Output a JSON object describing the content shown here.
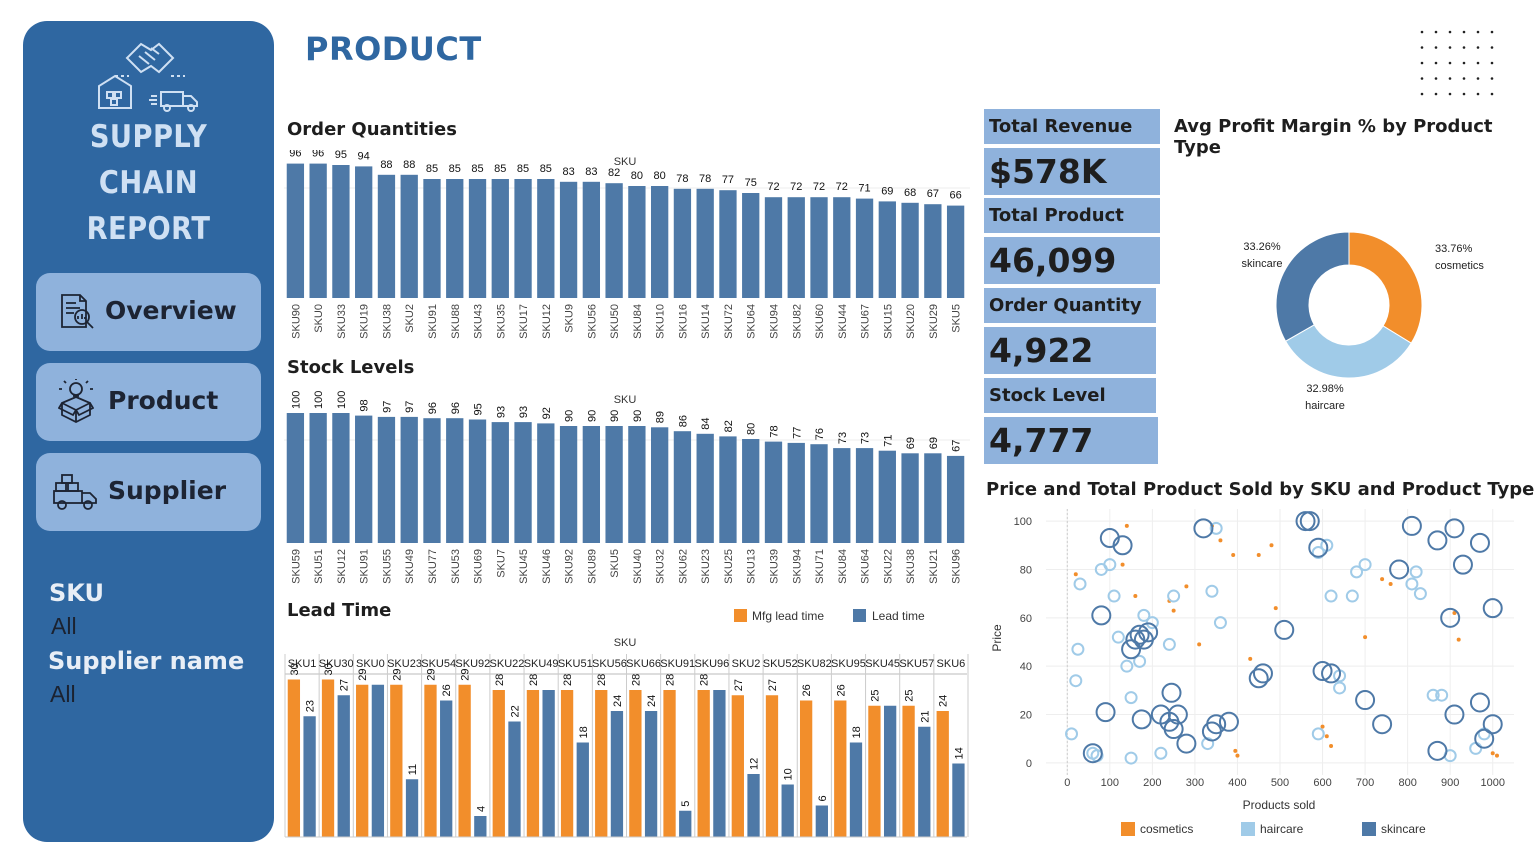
{
  "sidebar": {
    "title_line1": "SUPPLY CHAIN",
    "title_line2": "REPORT",
    "nav": [
      {
        "label": "Overview",
        "icon": "report-magnifier-icon"
      },
      {
        "label": "Product",
        "icon": "box-lightbulb-icon"
      },
      {
        "label": "Supplier",
        "icon": "delivery-truck-icon"
      }
    ],
    "filters": [
      {
        "label": "SKU",
        "value": "All"
      },
      {
        "label": "Supplier name",
        "value": "All"
      }
    ]
  },
  "page": {
    "title": "PRODUCT"
  },
  "kpis": [
    {
      "label": "Total Revenue",
      "value": "$578K"
    },
    {
      "label": "Total Product Sold",
      "value": "46,099"
    },
    {
      "label": "Order Quantity",
      "value": "4,922"
    },
    {
      "label": "Stock Level",
      "value": "4,777"
    }
  ],
  "colors": {
    "cosmetics": "#f28e2b",
    "haircare": "#a0cbe8",
    "skincare": "#4e79a7",
    "bar": "#4e79a7",
    "brand": "#2f67a1"
  },
  "chart_data": [
    {
      "id": "order",
      "type": "bar",
      "title": "Order Quantities",
      "xlabel": "SKU",
      "categories": [
        "SKU90",
        "SKU0",
        "SKU33",
        "SKU19",
        "SKU38",
        "SKU2",
        "SKU91",
        "SKU88",
        "SKU43",
        "SKU35",
        "SKU17",
        "SKU12",
        "SKU9",
        "SKU56",
        "SKU50",
        "SKU84",
        "SKU10",
        "SKU16",
        "SKU14",
        "SKU72",
        "SKU64",
        "SKU94",
        "SKU82",
        "SKU60",
        "SKU44",
        "SKU67",
        "SKU15",
        "SKU20",
        "SKU29",
        "SKU5"
      ],
      "values": [
        96,
        96,
        95,
        94,
        88,
        88,
        85,
        85,
        85,
        85,
        85,
        85,
        83,
        83,
        82,
        80,
        80,
        78,
        78,
        77,
        75,
        72,
        72,
        72,
        72,
        71,
        69,
        68,
        67,
        66
      ],
      "ylim": [
        0,
        100
      ]
    },
    {
      "id": "stock",
      "type": "bar",
      "title": "Stock Levels",
      "xlabel": "SKU",
      "categories": [
        "SKU59",
        "SKU51",
        "SKU12",
        "SKU91",
        "SKU55",
        "SKU49",
        "SKU77",
        "SKU53",
        "SKU69",
        "SKU7",
        "SKU45",
        "SKU46",
        "SKU92",
        "SKU89",
        "SKU5",
        "SKU40",
        "SKU32",
        "SKU62",
        "SKU23",
        "SKU25",
        "SKU13",
        "SKU39",
        "SKU94",
        "SKU71",
        "SKU84",
        "SKU64",
        "SKU22",
        "SKU38",
        "SKU21",
        "SKU96"
      ],
      "values": [
        100,
        100,
        100,
        98,
        97,
        97,
        96,
        96,
        95,
        93,
        93,
        92,
        90,
        90,
        90,
        90,
        89,
        86,
        84,
        82,
        80,
        78,
        77,
        76,
        73,
        73,
        71,
        69,
        69,
        67
      ],
      "ylim": [
        0,
        100
      ]
    },
    {
      "id": "lead",
      "type": "bar",
      "title": "Lead Time",
      "xlabel": "SKU",
      "categories": [
        "SKU1",
        "SKU30",
        "SKU0",
        "SKU23",
        "SKU54",
        "SKU92",
        "SKU22",
        "SKU49",
        "SKU51",
        "SKU56",
        "SKU66",
        "SKU91",
        "SKU96",
        "SKU2",
        "SKU52",
        "SKU82",
        "SKU95",
        "SKU45",
        "SKU57",
        "SKU6"
      ],
      "series": [
        {
          "name": "Mfg lead time",
          "values": [
            30,
            30,
            29,
            29,
            29,
            29,
            28,
            28,
            28,
            28,
            28,
            28,
            28,
            27,
            27,
            26,
            26,
            25,
            25,
            24
          ]
        },
        {
          "name": "Lead time",
          "values": [
            23,
            27,
            29,
            11,
            26,
            4,
            22,
            28,
            18,
            24,
            24,
            5,
            28,
            12,
            10,
            6,
            18,
            25,
            21,
            14
          ]
        }
      ],
      "show_labels": [
        [
          true,
          true
        ],
        [
          true,
          true
        ],
        [
          true,
          false
        ],
        [
          true,
          true
        ],
        [
          true,
          true
        ],
        [
          true,
          true
        ],
        [
          true,
          true
        ],
        [
          true,
          false
        ],
        [
          true,
          true
        ],
        [
          true,
          true
        ],
        [
          true,
          true
        ],
        [
          true,
          true
        ],
        [
          true,
          false
        ],
        [
          true,
          true
        ],
        [
          true,
          true
        ],
        [
          true,
          true
        ],
        [
          true,
          true
        ],
        [
          true,
          false
        ],
        [
          true,
          true
        ],
        [
          true,
          true
        ]
      ],
      "ylim": [
        0,
        32
      ]
    },
    {
      "id": "donut",
      "type": "pie",
      "title": "Avg Profit Margin % by Product Type",
      "slices": [
        {
          "label": "cosmetics",
          "pct": "33.76%",
          "value": 33.76
        },
        {
          "label": "haircare",
          "pct": "32.98%",
          "value": 32.98
        },
        {
          "label": "skincare",
          "pct": "33.26%",
          "value": 33.26
        }
      ]
    },
    {
      "id": "scatter",
      "type": "scatter",
      "title": "Price and Total Product Sold by SKU and Product Type",
      "xlabel": "Products sold",
      "ylabel": "Price",
      "xlim": [
        -50,
        1050
      ],
      "ylim": [
        -5,
        105
      ],
      "xticks": [
        0,
        100,
        200,
        300,
        400,
        500,
        600,
        700,
        800,
        900,
        1000
      ],
      "yticks": [
        0,
        20,
        40,
        60,
        80,
        100
      ],
      "legend": [
        "cosmetics",
        "haircare",
        "skincare"
      ],
      "series": [
        {
          "name": "cosmetics",
          "points": [
            [
              20,
              78
            ],
            [
              140,
              98
            ],
            [
              130,
              82
            ],
            [
              160,
              69
            ],
            [
              240,
              67
            ],
            [
              250,
              63
            ],
            [
              280,
              73
            ],
            [
              310,
              49
            ],
            [
              340,
              98
            ],
            [
              360,
              92
            ],
            [
              390,
              86
            ],
            [
              395,
              5
            ],
            [
              400,
              3
            ],
            [
              430,
              43
            ],
            [
              450,
              86
            ],
            [
              480,
              90
            ],
            [
              490,
              64
            ],
            [
              600,
              15
            ],
            [
              610,
              11
            ],
            [
              620,
              7
            ],
            [
              700,
              52
            ],
            [
              740,
              76
            ],
            [
              760,
              74
            ],
            [
              910,
              62
            ],
            [
              920,
              51
            ],
            [
              1000,
              4
            ],
            [
              1010,
              3
            ]
          ]
        },
        {
          "name": "haircare",
          "points": [
            [
              10,
              12
            ],
            [
              20,
              34
            ],
            [
              25,
              47
            ],
            [
              30,
              74
            ],
            [
              60,
              4
            ],
            [
              70,
              3
            ],
            [
              80,
              80
            ],
            [
              100,
              82
            ],
            [
              110,
              69
            ],
            [
              120,
              52
            ],
            [
              140,
              40
            ],
            [
              150,
              27
            ],
            [
              150,
              2
            ],
            [
              170,
              42
            ],
            [
              180,
              61
            ],
            [
              200,
              58
            ],
            [
              220,
              4
            ],
            [
              240,
              49
            ],
            [
              250,
              69
            ],
            [
              330,
              8
            ],
            [
              340,
              71
            ],
            [
              350,
              97
            ],
            [
              360,
              58
            ],
            [
              590,
              12
            ],
            [
              590,
              87
            ],
            [
              610,
              90
            ],
            [
              620,
              69
            ],
            [
              640,
              31
            ],
            [
              640,
              36
            ],
            [
              670,
              69
            ],
            [
              680,
              79
            ],
            [
              700,
              82
            ],
            [
              810,
              74
            ],
            [
              820,
              79
            ],
            [
              830,
              70
            ],
            [
              860,
              28
            ],
            [
              880,
              28
            ],
            [
              900,
              3
            ],
            [
              960,
              6
            ],
            [
              980,
              12
            ]
          ]
        },
        {
          "name": "skincare",
          "points": [
            [
              60,
              4
            ],
            [
              80,
              61
            ],
            [
              90,
              21
            ],
            [
              100,
              93
            ],
            [
              130,
              90
            ],
            [
              150,
              47
            ],
            [
              160,
              51
            ],
            [
              170,
              53
            ],
            [
              175,
              18
            ],
            [
              180,
              51
            ],
            [
              190,
              54
            ],
            [
              220,
              20
            ],
            [
              240,
              17
            ],
            [
              245,
              29
            ],
            [
              250,
              14
            ],
            [
              260,
              20
            ],
            [
              280,
              8
            ],
            [
              320,
              97
            ],
            [
              340,
              13
            ],
            [
              350,
              16
            ],
            [
              380,
              17
            ],
            [
              450,
              35
            ],
            [
              460,
              37
            ],
            [
              510,
              55
            ],
            [
              560,
              100
            ],
            [
              570,
              100
            ],
            [
              590,
              89
            ],
            [
              600,
              38
            ],
            [
              620,
              37
            ],
            [
              700,
              26
            ],
            [
              740,
              16
            ],
            [
              780,
              80
            ],
            [
              810,
              98
            ],
            [
              870,
              92
            ],
            [
              870,
              5
            ],
            [
              900,
              60
            ],
            [
              910,
              20
            ],
            [
              910,
              97
            ],
            [
              930,
              82
            ],
            [
              970,
              91
            ],
            [
              970,
              25
            ],
            [
              980,
              10
            ],
            [
              1000,
              64
            ],
            [
              1000,
              16
            ]
          ]
        }
      ]
    }
  ]
}
